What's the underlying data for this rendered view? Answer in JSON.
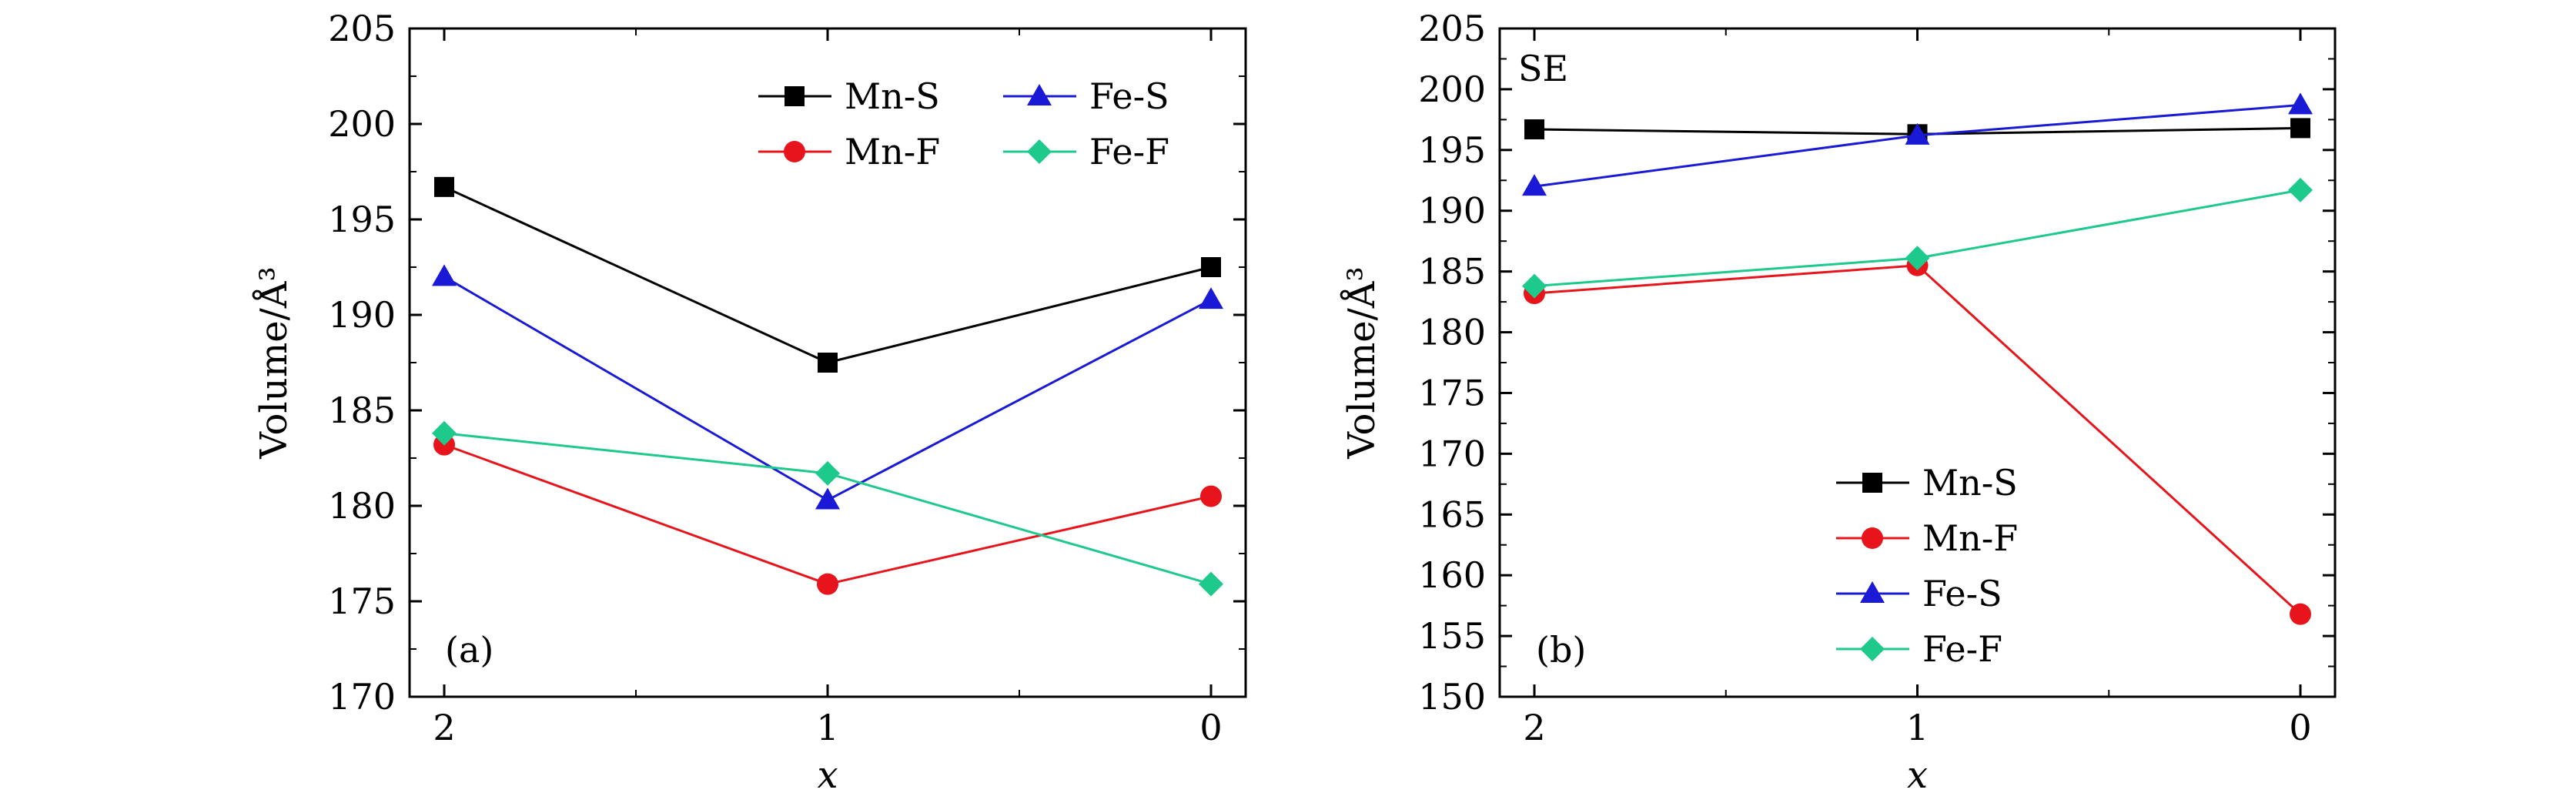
{
  "chart_data": [
    {
      "panel": "(a)",
      "type": "line",
      "categories": [
        "2",
        "1",
        "0"
      ],
      "xlabel": "x",
      "ylabel": "Volume/Å³",
      "ylim": [
        170,
        205
      ],
      "yticks": [
        170,
        175,
        180,
        185,
        190,
        195,
        200,
        205
      ],
      "annotation": "",
      "legend_position": "top-right",
      "series": [
        {
          "name": "Mn-S",
          "color": "#000000",
          "marker": "square",
          "values": [
            196.7,
            187.5,
            192.5
          ]
        },
        {
          "name": "Mn-F",
          "color": "#e8141c",
          "marker": "circle",
          "values": [
            183.2,
            175.9,
            180.5
          ]
        },
        {
          "name": "Fe-S",
          "color": "#1a1ad6",
          "marker": "triangle",
          "values": [
            192.0,
            180.3,
            190.8
          ]
        },
        {
          "name": "Fe-F",
          "color": "#1ec98c",
          "marker": "diamond",
          "values": [
            183.8,
            181.7,
            175.9
          ]
        }
      ]
    },
    {
      "panel": "(b)",
      "type": "line",
      "categories": [
        "2",
        "1",
        "0"
      ],
      "xlabel": "x",
      "ylabel": "Volume/Å³",
      "ylim": [
        150,
        205
      ],
      "yticks": [
        150,
        155,
        160,
        165,
        170,
        175,
        180,
        185,
        190,
        195,
        200,
        205
      ],
      "annotation": "SE",
      "legend_position": "bottom-center",
      "series": [
        {
          "name": "Mn-S",
          "color": "#000000",
          "marker": "square",
          "values": [
            196.7,
            196.3,
            196.8
          ]
        },
        {
          "name": "Mn-F",
          "color": "#e8141c",
          "marker": "circle",
          "values": [
            183.2,
            185.5,
            156.8
          ]
        },
        {
          "name": "Fe-S",
          "color": "#1a1ad6",
          "marker": "triangle",
          "values": [
            192.0,
            196.2,
            198.7
          ]
        },
        {
          "name": "Fe-F",
          "color": "#1ec98c",
          "marker": "diamond",
          "values": [
            183.8,
            186.1,
            191.7
          ]
        }
      ]
    }
  ]
}
